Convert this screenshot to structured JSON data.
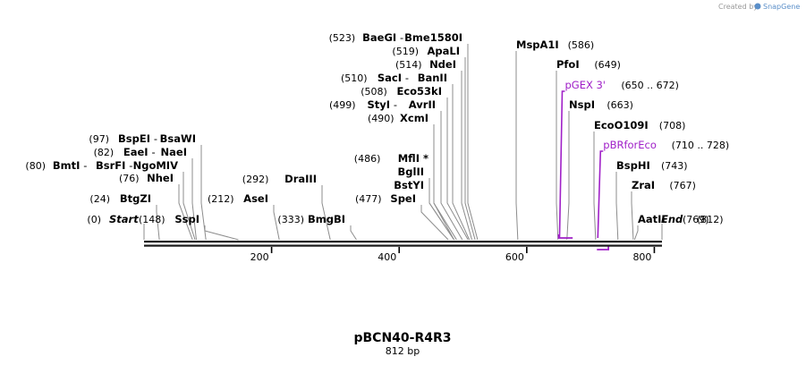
{
  "credit": {
    "prefix": "Created by",
    "brand": "SnapGene"
  },
  "plasmid": {
    "name": "pBCN40-R4R3",
    "size_label": "812 bp",
    "length": 812
  },
  "ticks": [
    {
      "value": 200,
      "label": "200"
    },
    {
      "value": 400,
      "label": "400"
    },
    {
      "value": 600,
      "label": "600"
    },
    {
      "value": 800,
      "label": "800"
    }
  ],
  "ends": {
    "start": {
      "pos": 0,
      "pos_label": "(0)",
      "label": "Start"
    },
    "end": {
      "pos": 812,
      "pos_label": "(812)",
      "label": "End"
    }
  },
  "sites": [
    {
      "id": "btgzi",
      "pos": 24,
      "pos_label": "(24)",
      "names": [
        "BtgZI"
      ],
      "side": "left"
    },
    {
      "id": "nhei",
      "pos": 76,
      "pos_label": "(76)",
      "names": [
        "NheI"
      ],
      "side": "left"
    },
    {
      "id": "bmti",
      "pos": 80,
      "pos_label": "(80)",
      "names": [
        "BmtI",
        "BsrFI",
        "NgoMIV"
      ],
      "side": "left"
    },
    {
      "id": "eaei",
      "pos": 82,
      "pos_label": "(82)",
      "names": [
        "EaeI",
        "NaeI"
      ],
      "side": "left"
    },
    {
      "id": "bspei",
      "pos": 97,
      "pos_label": "(97)",
      "names": [
        "BspEI",
        "BsaWI"
      ],
      "side": "left"
    },
    {
      "id": "sspi",
      "pos": 148,
      "pos_label": "(148)",
      "names": [
        "SspI"
      ],
      "side": "left"
    },
    {
      "id": "asei",
      "pos": 212,
      "pos_label": "(212)",
      "names": [
        "AseI"
      ],
      "side": "left"
    },
    {
      "id": "draiii",
      "pos": 292,
      "pos_label": "(292)",
      "names": [
        "DraIII"
      ],
      "side": "left"
    },
    {
      "id": "bmgbi",
      "pos": 333,
      "pos_label": "(333)",
      "names": [
        "BmgBI"
      ],
      "side": "left"
    },
    {
      "id": "spei",
      "pos": 477,
      "pos_label": "(477)",
      "names": [
        "SpeI"
      ],
      "side": "left"
    },
    {
      "id": "bstyi",
      "pos": 486,
      "pos_label": "",
      "names": [
        "BstYI"
      ],
      "side": "left"
    },
    {
      "id": "bglii",
      "pos": 486,
      "pos_label": "",
      "names": [
        "BglII"
      ],
      "side": "left"
    },
    {
      "id": "mfli",
      "pos": 486,
      "pos_label": "(486)",
      "names": [
        "MflI *"
      ],
      "side": "left"
    },
    {
      "id": "xcmi",
      "pos": 490,
      "pos_label": "(490)",
      "names": [
        "XcmI"
      ],
      "side": "left"
    },
    {
      "id": "styi",
      "pos": 499,
      "pos_label": "(499)",
      "names": [
        "StyI",
        "AvrII"
      ],
      "side": "left"
    },
    {
      "id": "eco53ki",
      "pos": 508,
      "pos_label": "(508)",
      "names": [
        "Eco53kI"
      ],
      "side": "left"
    },
    {
      "id": "saci",
      "pos": 510,
      "pos_label": "(510)",
      "names": [
        "SacI",
        "BanII"
      ],
      "side": "left"
    },
    {
      "id": "ndei",
      "pos": 514,
      "pos_label": "(514)",
      "names": [
        "NdeI"
      ],
      "side": "left"
    },
    {
      "id": "apali",
      "pos": 519,
      "pos_label": "(519)",
      "names": [
        "ApaLI"
      ],
      "side": "left"
    },
    {
      "id": "baegi",
      "pos": 523,
      "pos_label": "(523)",
      "names": [
        "BaeGI",
        "Bme1580I"
      ],
      "side": "left"
    },
    {
      "id": "mspa1i",
      "pos": 586,
      "pos_label": "(586)",
      "names": [
        "MspA1I"
      ],
      "side": "right"
    },
    {
      "id": "pfoi",
      "pos": 649,
      "pos_label": "(649)",
      "names": [
        "PfoI"
      ],
      "side": "right"
    },
    {
      "id": "nspi",
      "pos": 663,
      "pos_label": "(663)",
      "names": [
        "NspI"
      ],
      "side": "right"
    },
    {
      "id": "eco0109i",
      "pos": 708,
      "pos_label": "(708)",
      "names": [
        "EcoO109I"
      ],
      "side": "right"
    },
    {
      "id": "bsphi",
      "pos": 743,
      "pos_label": "(743)",
      "names": [
        "BspHI"
      ],
      "side": "right"
    },
    {
      "id": "zrai",
      "pos": 767,
      "pos_label": "(767)",
      "names": [
        "ZraI"
      ],
      "side": "right"
    },
    {
      "id": "aatii",
      "pos": 769,
      "pos_label": "(769)",
      "names": [
        "AatII"
      ],
      "side": "right"
    }
  ],
  "primers": [
    {
      "id": "pgex3",
      "name": "pGEX 3'",
      "range": "(650 .. 672)",
      "start": 650,
      "end": 672,
      "color": "#a020c8"
    },
    {
      "id": "pbrforeco",
      "name": "pBRforEco",
      "range": "(710 .. 728)",
      "start": 710,
      "end": 728,
      "color": "#a020c8"
    }
  ]
}
